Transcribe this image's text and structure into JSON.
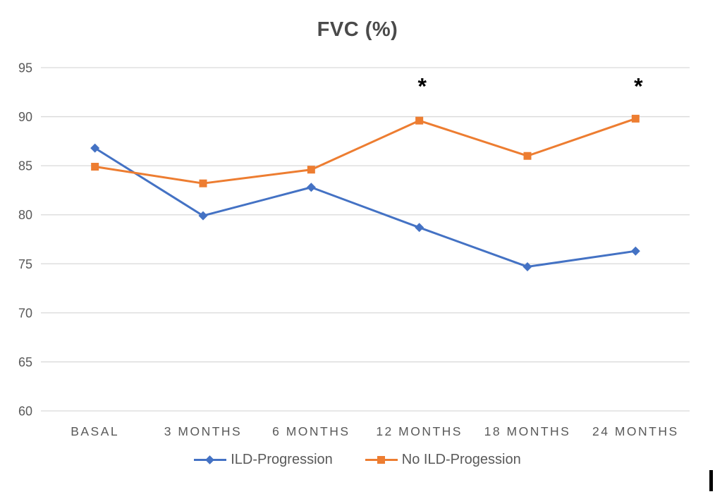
{
  "title": "FVC (%)",
  "chart_data": {
    "type": "line",
    "title": "FVC (%)",
    "categories": [
      "BASAL",
      "3 MONTHS",
      "6 MONTHS",
      "12 MONTHS",
      "18 MONTHS",
      "24 MONTHS"
    ],
    "series": [
      {
        "name": "ILD-Progression",
        "color": "#4472C4",
        "marker": "diamond",
        "values": [
          86.8,
          79.9,
          82.8,
          78.7,
          74.7,
          76.3
        ]
      },
      {
        "name": "No ILD-Progession",
        "color": "#ED7D31",
        "marker": "square",
        "values": [
          84.9,
          83.2,
          84.6,
          89.6,
          86.0,
          89.8
        ]
      }
    ],
    "ylim": [
      60,
      95
    ],
    "yticks": [
      60,
      65,
      70,
      75,
      80,
      85,
      90,
      95
    ],
    "xlabel": "",
    "ylabel": "",
    "grid": "horizontal",
    "legend_position": "bottom",
    "annotations": [
      {
        "symbol": "*",
        "category_index": 3,
        "y": 93.3
      },
      {
        "symbol": "*",
        "category_index": 5,
        "y": 93.3
      }
    ],
    "style": {
      "gridline_color": "#d9d9d9",
      "axis_text_color": "#595959",
      "title_color": "#4a4a4a",
      "annotation_color": "#000000"
    }
  }
}
